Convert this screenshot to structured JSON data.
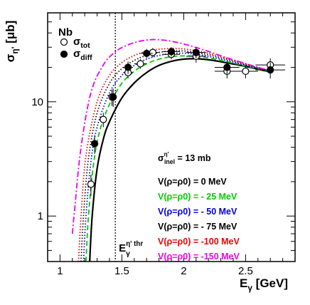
{
  "chart_data": {
    "type": "scatter",
    "target_label": "Nb",
    "xlabel": "Eγ [GeV]",
    "ylabel": "ση' [μb]",
    "xlim": [
      0.9,
      2.9
    ],
    "ylim": [
      0.4,
      60
    ],
    "y_scale": "log",
    "x_ticks": [
      1,
      1.5,
      2,
      2.5
    ],
    "x_tick_labels": [
      "1",
      "1.5",
      "2",
      "2.5"
    ],
    "y_ticks": [
      1,
      10
    ],
    "y_tick_labels": [
      "1",
      "10"
    ],
    "threshold": {
      "x": 1.447,
      "label": "Eγη' thr"
    },
    "sigma_inel_label": "σinelη' = 13 mb",
    "legend": [
      {
        "name": "σtot",
        "marker": "open-circle"
      },
      {
        "name": "σdiff",
        "marker": "filled-circle"
      }
    ],
    "data_series": [
      {
        "name": "σtot",
        "marker": "open",
        "points": [
          {
            "x": 1.25,
            "y": 1.9,
            "xerr": 0.02,
            "yerr": 0.4
          },
          {
            "x": 1.35,
            "y": 7.0,
            "xerr": 0.025,
            "yerr": 1.0
          },
          {
            "x": 1.42,
            "y": 11.0,
            "xerr": 0.025,
            "yerr": 1.8
          },
          {
            "x": 1.55,
            "y": 18.0,
            "xerr": 0.04,
            "yerr": 2.0
          },
          {
            "x": 1.65,
            "y": 21.5,
            "xerr": 0.05,
            "yerr": 2.0
          },
          {
            "x": 1.75,
            "y": 27.0,
            "xerr": 0.05,
            "yerr": 2.5
          },
          {
            "x": 1.9,
            "y": 26.0,
            "xerr": 0.07,
            "yerr": 2.5
          },
          {
            "x": 2.1,
            "y": 25.0,
            "xerr": 0.08,
            "yerr": 3.0
          },
          {
            "x": 2.35,
            "y": 18.5,
            "xerr": 0.1,
            "yerr": 2.5
          },
          {
            "x": 2.5,
            "y": 18.5,
            "xerr": 0.1,
            "yerr": 2.5
          },
          {
            "x": 2.7,
            "y": 21.0,
            "xerr": 0.12,
            "yerr": 3.0
          }
        ]
      },
      {
        "name": "σdiff",
        "marker": "filled",
        "points": [
          {
            "x": 1.28,
            "y": 4.3,
            "xerr": 0.025,
            "yerr": 0.8
          },
          {
            "x": 1.43,
            "y": 11.0,
            "xerr": 0.025,
            "yerr": 2.0
          },
          {
            "x": 1.55,
            "y": 20.0,
            "xerr": 0.04,
            "yerr": 2.5
          },
          {
            "x": 1.7,
            "y": 26.5,
            "xerr": 0.05,
            "yerr": 2.5
          },
          {
            "x": 1.9,
            "y": 27.5,
            "xerr": 0.07,
            "yerr": 2.5
          },
          {
            "x": 2.1,
            "y": 27.0,
            "xerr": 0.08,
            "yerr": 3.0
          },
          {
            "x": 2.35,
            "y": 20.0,
            "xerr": 0.1,
            "yerr": 2.5
          },
          {
            "x": 2.7,
            "y": 19.0,
            "xerr": 0.12,
            "yerr": 3.0
          }
        ]
      }
    ],
    "model_series": [
      {
        "name": "V(ρ=ρ0) =    0 MeV",
        "color": "#000000",
        "style": "solid",
        "x": [
          1.24,
          1.26,
          1.3,
          1.35,
          1.4,
          1.5,
          1.6,
          1.7,
          1.8,
          1.9,
          2.0,
          2.1,
          2.2,
          2.3,
          2.4,
          2.5,
          2.6,
          2.7
        ],
        "y": [
          0.4,
          1.0,
          2.6,
          4.7,
          6.7,
          10.8,
          14.6,
          18.0,
          20.8,
          22.6,
          23.6,
          23.8,
          23.3,
          22.4,
          21.4,
          20.4,
          19.3,
          18.2
        ]
      },
      {
        "name": "V(ρ=ρ0) = - 25 MeV",
        "color": "#00cc00",
        "style": "dashed",
        "x": [
          1.21,
          1.23,
          1.27,
          1.32,
          1.4,
          1.5,
          1.6,
          1.7,
          1.8,
          1.9,
          2.0,
          2.1,
          2.2,
          2.3,
          2.4,
          2.5,
          2.6,
          2.7
        ],
        "y": [
          0.4,
          1.0,
          2.8,
          5.5,
          9.5,
          14.5,
          18.5,
          21.5,
          23.6,
          24.8,
          25.2,
          25.0,
          24.2,
          23.0,
          21.8,
          20.6,
          19.4,
          18.3
        ]
      },
      {
        "name": "V(ρ=ρ0) = - 50 MeV",
        "color": "#0000dd",
        "style": "dotted",
        "x": [
          1.19,
          1.21,
          1.25,
          1.3,
          1.4,
          1.5,
          1.6,
          1.7,
          1.8,
          1.9,
          2.0,
          2.1,
          2.2,
          2.3,
          2.4,
          2.5,
          2.6,
          2.7
        ],
        "y": [
          0.4,
          1.0,
          3.0,
          6.0,
          12.0,
          17.0,
          20.8,
          23.6,
          25.4,
          26.4,
          26.6,
          26.1,
          25.0,
          23.6,
          22.2,
          20.9,
          19.6,
          18.4
        ]
      },
      {
        "name": "V(ρ=ρ0) = - 75 MeV",
        "color": "#111111",
        "style": "dotted",
        "x": [
          1.17,
          1.19,
          1.23,
          1.3,
          1.4,
          1.5,
          1.6,
          1.7,
          1.8,
          1.9,
          2.0,
          2.1,
          2.2,
          2.3,
          2.4,
          2.5,
          2.6,
          2.7
        ],
        "y": [
          0.4,
          1.0,
          3.2,
          8.0,
          14.5,
          19.5,
          23.0,
          25.5,
          27.0,
          27.8,
          27.8,
          27.0,
          25.8,
          24.2,
          22.7,
          21.2,
          19.8,
          18.5
        ]
      },
      {
        "name": "V(ρ=ρ0) = -100 MeV",
        "color": "#ee0000",
        "style": "dotted",
        "x": [
          1.15,
          1.17,
          1.21,
          1.3,
          1.4,
          1.5,
          1.6,
          1.7,
          1.8,
          1.9,
          2.0,
          2.1,
          2.2,
          2.3,
          2.4,
          2.5,
          2.6,
          2.7
        ],
        "y": [
          0.4,
          1.0,
          3.4,
          10.0,
          17.0,
          22.0,
          25.4,
          27.6,
          28.8,
          29.2,
          29.0,
          28.0,
          26.6,
          24.8,
          23.1,
          21.5,
          20.0,
          18.6
        ]
      },
      {
        "name": "V(ρ=ρ0) = -150 MeV",
        "color": "#ee00ee",
        "style": "dashdot",
        "x": [
          1.1,
          1.12,
          1.17,
          1.25,
          1.35,
          1.45,
          1.55,
          1.65,
          1.75,
          1.85,
          1.95,
          2.05,
          2.2,
          2.3,
          2.4,
          2.5,
          2.6,
          2.7
        ],
        "y": [
          0.7,
          1.2,
          4.0,
          12.0,
          21.0,
          27.5,
          31.5,
          34.0,
          35.0,
          34.5,
          33.0,
          31.0,
          27.6,
          25.3,
          23.3,
          21.6,
          20.0,
          18.7
        ]
      }
    ]
  }
}
